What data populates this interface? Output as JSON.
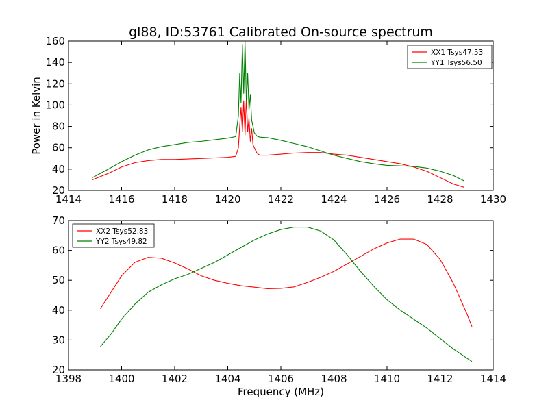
{
  "figure": {
    "title": "gl88, ID:53761 Calibrated On-source spectrum",
    "xlabel": "Frequency (MHz)",
    "ylabel": "Power in Kelvin"
  },
  "colors": {
    "xx": "#ff0000",
    "yy": "#008000"
  },
  "chart_data": [
    {
      "type": "line",
      "xlim": [
        1414,
        1430
      ],
      "ylim": [
        20,
        160
      ],
      "xticks": [
        1414,
        1416,
        1418,
        1420,
        1422,
        1424,
        1426,
        1428,
        1430
      ],
      "yticks": [
        20,
        40,
        60,
        80,
        100,
        120,
        140,
        160
      ],
      "legend_position": "top-right",
      "grid": false,
      "series": [
        {
          "name": "XX1 Tsys47.53",
          "color": "#ff0000",
          "x": [
            1414.9,
            1415.5,
            1416.0,
            1416.5,
            1417.0,
            1417.5,
            1418.0,
            1418.5,
            1419.0,
            1419.5,
            1420.0,
            1420.3,
            1420.4,
            1420.45,
            1420.5,
            1420.55,
            1420.6,
            1420.65,
            1420.7,
            1420.75,
            1420.8,
            1420.85,
            1420.9,
            1420.95,
            1421.0,
            1421.1,
            1421.2,
            1421.5,
            1422.0,
            1422.5,
            1423.0,
            1423.5,
            1424.0,
            1424.5,
            1425.0,
            1425.5,
            1426.0,
            1426.5,
            1427.0,
            1427.5,
            1428.0,
            1428.5,
            1428.9
          ],
          "y": [
            30,
            36,
            42,
            46,
            48,
            49,
            49,
            49.5,
            50,
            50.5,
            51,
            52,
            60,
            80,
            98,
            75,
            104,
            72,
            107,
            75,
            88,
            66,
            78,
            63,
            60,
            55,
            53,
            53,
            54,
            55,
            55.5,
            55.5,
            54,
            53,
            51,
            49,
            47,
            45,
            42,
            38,
            32,
            26,
            23
          ]
        },
        {
          "name": "YY1 Tsys56.50",
          "color": "#008000",
          "x": [
            1414.9,
            1415.5,
            1416.0,
            1416.5,
            1417.0,
            1417.5,
            1418.0,
            1418.5,
            1419.0,
            1419.5,
            1420.0,
            1420.3,
            1420.4,
            1420.45,
            1420.5,
            1420.55,
            1420.6,
            1420.65,
            1420.7,
            1420.75,
            1420.8,
            1420.85,
            1420.9,
            1420.95,
            1421.0,
            1421.1,
            1421.2,
            1421.5,
            1422.0,
            1422.5,
            1423.0,
            1423.5,
            1424.0,
            1424.5,
            1425.0,
            1425.5,
            1426.0,
            1426.5,
            1427.0,
            1427.5,
            1428.0,
            1428.5,
            1428.9
          ],
          "y": [
            32,
            40,
            47,
            53,
            58,
            61,
            63,
            65,
            66,
            67.5,
            69,
            70.5,
            90,
            130,
            102,
            157,
            111,
            160,
            103,
            130,
            95,
            110,
            86,
            80,
            74,
            71,
            70,
            69.5,
            67,
            64,
            61,
            57,
            53,
            50,
            47,
            45,
            43.5,
            43,
            42.5,
            41,
            38,
            34,
            29
          ]
        }
      ]
    },
    {
      "type": "line",
      "xlim": [
        1398,
        1414
      ],
      "ylim": [
        20,
        70
      ],
      "xticks": [
        1398,
        1400,
        1402,
        1404,
        1406,
        1408,
        1410,
        1412,
        1414
      ],
      "yticks": [
        20,
        30,
        40,
        50,
        60,
        70
      ],
      "legend_position": "top-left",
      "grid": false,
      "series": [
        {
          "name": "XX2 Tsys52.83",
          "color": "#ff0000",
          "x": [
            1399.2,
            1399.6,
            1400.0,
            1400.5,
            1401.0,
            1401.5,
            1402.0,
            1402.5,
            1403.0,
            1403.5,
            1404.0,
            1404.5,
            1405.0,
            1405.5,
            1406.0,
            1406.5,
            1407.0,
            1407.5,
            1408.0,
            1408.5,
            1409.0,
            1409.5,
            1410.0,
            1410.5,
            1411.0,
            1411.5,
            1412.0,
            1412.5,
            1413.0,
            1413.2
          ],
          "y": [
            40.5,
            46,
            51.5,
            56,
            57.7,
            57.4,
            55.8,
            53.8,
            51.5,
            50,
            49,
            48.2,
            47.7,
            47.2,
            47.3,
            47.8,
            49.3,
            51,
            53,
            55.5,
            58,
            60.5,
            62.5,
            63.8,
            63.8,
            62,
            57,
            49,
            39,
            34.5
          ]
        },
        {
          "name": "YY2 Tsys49.82",
          "color": "#008000",
          "x": [
            1399.2,
            1399.6,
            1400.0,
            1400.5,
            1401.0,
            1401.5,
            1402.0,
            1402.5,
            1403.0,
            1403.5,
            1404.0,
            1404.5,
            1405.0,
            1405.5,
            1406.0,
            1406.5,
            1407.0,
            1407.5,
            1408.0,
            1408.5,
            1409.0,
            1409.5,
            1410.0,
            1410.5,
            1411.0,
            1411.5,
            1412.0,
            1412.5,
            1413.0,
            1413.2
          ],
          "y": [
            27.8,
            32,
            37,
            42,
            46,
            48.5,
            50.5,
            52,
            54,
            56,
            58.5,
            61,
            63.5,
            65.5,
            67,
            67.8,
            67.8,
            66.5,
            63.5,
            58.5,
            53,
            48,
            43.5,
            40,
            37,
            34,
            30.5,
            27,
            24,
            22.8
          ]
        }
      ]
    }
  ]
}
